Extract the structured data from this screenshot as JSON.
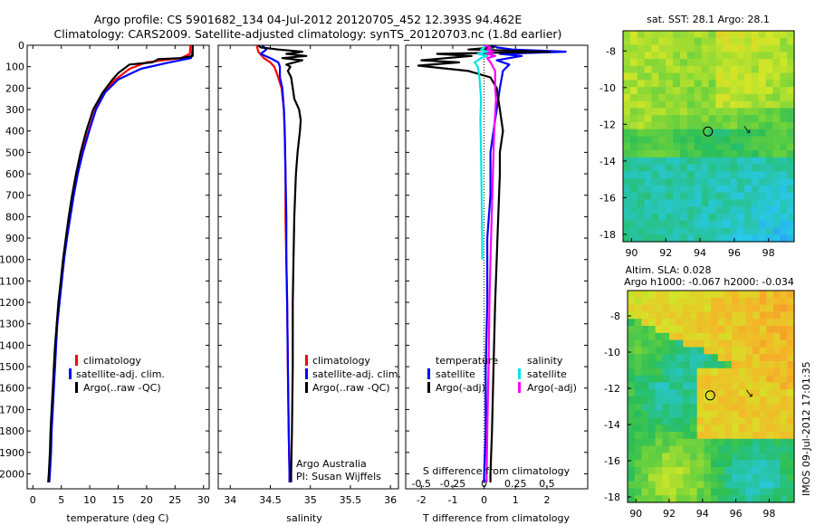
{
  "title": {
    "line1": "Argo profile: CS 5901682_134 04-Jul-2012 20120705_452 12.393S 94.462E",
    "line2": "Climatology: CARS2009. Satellite-adjusted climatology: synTS_20120703.nc (1.8d earlier)"
  },
  "side_text": "IMOS 09-Jul-2012 17:01:35",
  "colors": {
    "climatology": "#ff0000",
    "satellite": "#0000ff",
    "argo": "#000000",
    "sat_diff_s": "#00e5e5",
    "argo_diff_s": "#ff00ff"
  },
  "chart_data": [
    {
      "id": "temperature",
      "type": "line",
      "xlabel": "temperature (deg C)",
      "ylabel": "",
      "xlim": [
        -1,
        31
      ],
      "ylim": [
        2070,
        0
      ],
      "xticks": [
        "0",
        "5",
        "10",
        "15",
        "20",
        "25",
        "30"
      ],
      "yticks": [
        "0",
        "100",
        "200",
        "300",
        "400",
        "500",
        "600",
        "700",
        "800",
        "900",
        "1000",
        "1100",
        "1200",
        "1300",
        "1400",
        "1500",
        "1600",
        "1700",
        "1800",
        "1900",
        "2000"
      ],
      "legend": [
        "climatology",
        "satellite-adj. clim.",
        "Argo(..raw -QC)"
      ],
      "series": [
        {
          "name": "climatology",
          "color": "#ff0000",
          "points": [
            [
              27.7,
              0
            ],
            [
              27.6,
              40
            ],
            [
              26,
              60
            ],
            [
              20,
              80
            ],
            [
              17,
              110
            ],
            [
              14.5,
              160
            ],
            [
              12.5,
              220
            ],
            [
              11,
              300
            ],
            [
              9.8,
              400
            ],
            [
              8.7,
              500
            ],
            [
              7.8,
              600
            ],
            [
              7.1,
              700
            ],
            [
              6.5,
              800
            ],
            [
              5.9,
              900
            ],
            [
              5.4,
              1000
            ],
            [
              5,
              1100
            ],
            [
              4.6,
              1200
            ],
            [
              4.2,
              1300
            ],
            [
              4,
              1400
            ],
            [
              3.8,
              1500
            ],
            [
              3.6,
              1600
            ],
            [
              3.4,
              1700
            ],
            [
              3.2,
              1800
            ],
            [
              3.1,
              1900
            ],
            [
              2.9,
              2000
            ],
            [
              2.8,
              2040
            ]
          ]
        },
        {
          "name": "satellite-adj. clim.",
          "color": "#0000ff",
          "points": [
            [
              28.1,
              0
            ],
            [
              28,
              40
            ],
            [
              27.8,
              60
            ],
            [
              24,
              80
            ],
            [
              19,
              110
            ],
            [
              15,
              160
            ],
            [
              12.7,
              220
            ],
            [
              11.1,
              300
            ],
            [
              9.9,
              400
            ],
            [
              8.8,
              500
            ],
            [
              7.9,
              600
            ],
            [
              7.2,
              700
            ],
            [
              6.6,
              800
            ],
            [
              6,
              900
            ],
            [
              5.5,
              1000
            ],
            [
              5.1,
              1100
            ],
            [
              4.7,
              1200
            ],
            [
              4.3,
              1300
            ],
            [
              4.1,
              1400
            ],
            [
              3.9,
              1500
            ],
            [
              3.7,
              1600
            ],
            [
              3.5,
              1700
            ],
            [
              3.3,
              1800
            ],
            [
              3.2,
              1900
            ],
            [
              3,
              2000
            ],
            [
              2.9,
              2040
            ]
          ]
        },
        {
          "name": "Argo(..raw -QC)",
          "color": "#000000",
          "points": [
            [
              28.1,
              0
            ],
            [
              28.1,
              50
            ],
            [
              26,
              60
            ],
            [
              22,
              65
            ],
            [
              21,
              80
            ],
            [
              17,
              90
            ],
            [
              15,
              130
            ],
            [
              14,
              160
            ],
            [
              12.3,
              220
            ],
            [
              10.6,
              300
            ],
            [
              9.4,
              400
            ],
            [
              8.4,
              500
            ],
            [
              7.6,
              600
            ],
            [
              6.9,
              700
            ],
            [
              6.3,
              800
            ],
            [
              5.8,
              900
            ],
            [
              5.3,
              1000
            ],
            [
              4.9,
              1100
            ],
            [
              4.5,
              1200
            ],
            [
              4.2,
              1300
            ],
            [
              3.9,
              1400
            ],
            [
              3.7,
              1500
            ],
            [
              3.5,
              1600
            ],
            [
              3.3,
              1700
            ],
            [
              3.1,
              1800
            ],
            [
              3,
              1900
            ],
            [
              2.8,
              2000
            ],
            [
              2.7,
              2040
            ]
          ]
        }
      ]
    },
    {
      "id": "salinity",
      "type": "line",
      "xlabel": "salinity",
      "ylabel": "",
      "xlim": [
        33.85,
        36.1
      ],
      "ylim": [
        2070,
        0
      ],
      "xticks": [
        "34",
        "34.5",
        "35",
        "35.5",
        "36"
      ],
      "legend": [
        "climatology",
        "satellite-adj. clim.",
        "Argo(..raw -QC)"
      ],
      "annotations": [
        "Argo Australia",
        "PI: Susan Wijffels"
      ],
      "series": [
        {
          "name": "climatology",
          "color": "#ff0000",
          "points": [
            [
              34.33,
              0
            ],
            [
              34.35,
              30
            ],
            [
              34.42,
              60
            ],
            [
              34.5,
              80
            ],
            [
              34.55,
              100
            ],
            [
              34.6,
              150
            ],
            [
              34.64,
              200
            ],
            [
              34.67,
              300
            ],
            [
              34.68,
              400
            ],
            [
              34.69,
              600
            ],
            [
              34.69,
              800
            ],
            [
              34.7,
              1000
            ],
            [
              34.71,
              1200
            ],
            [
              34.72,
              1500
            ],
            [
              34.73,
              1800
            ],
            [
              34.74,
              2000
            ],
            [
              34.74,
              2040
            ]
          ]
        },
        {
          "name": "satellite-adj. clim.",
          "color": "#0000ff",
          "points": [
            [
              34.4,
              0
            ],
            [
              34.45,
              20
            ],
            [
              34.38,
              40
            ],
            [
              34.5,
              60
            ],
            [
              34.6,
              80
            ],
            [
              34.62,
              100
            ],
            [
              34.62,
              150
            ],
            [
              34.65,
              200
            ],
            [
              34.67,
              300
            ],
            [
              34.68,
              400
            ],
            [
              34.69,
              600
            ],
            [
              34.7,
              800
            ],
            [
              34.7,
              1000
            ],
            [
              34.71,
              1200
            ],
            [
              34.72,
              1500
            ],
            [
              34.73,
              1800
            ],
            [
              34.74,
              2000
            ],
            [
              34.74,
              2040
            ]
          ]
        },
        {
          "name": "Argo(..raw -QC)",
          "color": "#000000",
          "points": [
            [
              34.35,
              0
            ],
            [
              34.38,
              10
            ],
            [
              34.6,
              20
            ],
            [
              34.9,
              30
            ],
            [
              34.7,
              40
            ],
            [
              34.95,
              50
            ],
            [
              34.65,
              60
            ],
            [
              34.9,
              70
            ],
            [
              34.7,
              90
            ],
            [
              34.75,
              100
            ],
            [
              34.72,
              120
            ],
            [
              34.76,
              150
            ],
            [
              34.78,
              200
            ],
            [
              34.8,
              250
            ],
            [
              34.86,
              300
            ],
            [
              34.88,
              350
            ],
            [
              34.87,
              400
            ],
            [
              34.84,
              500
            ],
            [
              34.82,
              600
            ],
            [
              34.81,
              700
            ],
            [
              34.8,
              800
            ],
            [
              34.79,
              1000
            ],
            [
              34.78,
              1200
            ],
            [
              34.78,
              1500
            ],
            [
              34.77,
              1800
            ],
            [
              34.76,
              2000
            ],
            [
              34.76,
              2040
            ]
          ]
        }
      ]
    },
    {
      "id": "differences",
      "type": "line",
      "xlabel": "T difference from climatology",
      "xlabel_top": "S difference from climatology",
      "xlim": [
        -2.5,
        3.3
      ],
      "ylim": [
        2070,
        0
      ],
      "xticks": [
        "-2",
        "-1",
        "0",
        "1",
        "2"
      ],
      "xticks_top": [
        "-0.5",
        "-0.25",
        "0",
        "0.25",
        "0.5"
      ],
      "legend_groups": [
        {
          "header": "temperature",
          "items": [
            "satellite",
            "Argo(-adj)"
          ]
        },
        {
          "header": "salinity",
          "items": [
            "satellite",
            "Argo(-adj)"
          ]
        }
      ],
      "series": [
        {
          "name": "satellite",
          "quantity": "temperature",
          "color": "#0000ff",
          "points": [
            [
              0.3,
              0
            ],
            [
              0.4,
              10
            ],
            [
              0.9,
              20
            ],
            [
              2.6,
              30
            ],
            [
              0.5,
              40
            ],
            [
              1.2,
              50
            ],
            [
              0.4,
              70
            ],
            [
              0.8,
              90
            ],
            [
              0.6,
              120
            ],
            [
              0.5,
              200
            ],
            [
              0.4,
              300
            ],
            [
              0.3,
              400
            ],
            [
              0.2,
              500
            ],
            [
              0.2,
              700
            ],
            [
              0.1,
              900
            ],
            [
              0.1,
              1200
            ],
            [
              0.05,
              1500
            ],
            [
              0.05,
              1800
            ],
            [
              0,
              2000
            ],
            [
              0,
              2040
            ]
          ]
        },
        {
          "name": "Argo(-adj)",
          "quantity": "temperature",
          "color": "#000000",
          "points": [
            [
              0.2,
              0
            ],
            [
              0.3,
              10
            ],
            [
              -0.5,
              20
            ],
            [
              2.1,
              30
            ],
            [
              -1.5,
              40
            ],
            [
              -0.4,
              50
            ],
            [
              -2.0,
              70
            ],
            [
              -0.8,
              80
            ],
            [
              -2.1,
              95
            ],
            [
              -0.5,
              120
            ],
            [
              0.2,
              150
            ],
            [
              0.4,
              200
            ],
            [
              0.5,
              300
            ],
            [
              0.6,
              400
            ],
            [
              0.5,
              500
            ],
            [
              0.5,
              600
            ],
            [
              0.45,
              800
            ],
            [
              0.4,
              1000
            ],
            [
              0.35,
              1200
            ],
            [
              0.3,
              1500
            ],
            [
              0.25,
              1800
            ],
            [
              0.2,
              2000
            ],
            [
              0.2,
              2040
            ]
          ]
        },
        {
          "name": "satellite",
          "quantity": "salinity",
          "color": "#00e5e5",
          "points": [
            [
              0,
              0
            ],
            [
              0.02,
              10
            ],
            [
              -0.1,
              20
            ],
            [
              0.1,
              30
            ],
            [
              -0.2,
              40
            ],
            [
              0.1,
              50
            ],
            [
              -0.1,
              60
            ],
            [
              -0.3,
              80
            ],
            [
              -0.2,
              100
            ],
            [
              -0.15,
              150
            ],
            [
              -0.1,
              250
            ],
            [
              -0.12,
              350
            ],
            [
              -0.1,
              500
            ],
            [
              -0.08,
              700
            ],
            [
              -0.06,
              1000
            ]
          ]
        },
        {
          "name": "Argo(-adj)",
          "quantity": "salinity",
          "color": "#ff00ff",
          "points": [
            [
              0,
              0
            ],
            [
              0.2,
              10
            ],
            [
              0.1,
              20
            ],
            [
              0.3,
              30
            ],
            [
              0.1,
              40
            ],
            [
              0.35,
              50
            ],
            [
              0.1,
              60
            ],
            [
              0.2,
              80
            ],
            [
              0.35,
              120
            ],
            [
              0.35,
              200
            ],
            [
              0.38,
              250
            ],
            [
              0.36,
              300
            ],
            [
              0.32,
              400
            ],
            [
              0.28,
              600
            ],
            [
              0.24,
              800
            ],
            [
              0.2,
              1000
            ],
            [
              0.17,
              1200
            ],
            [
              0.14,
              1500
            ],
            [
              0.1,
              1800
            ],
            [
              0.08,
              2000
            ],
            [
              0.08,
              2040
            ]
          ]
        }
      ]
    },
    {
      "id": "sst_map",
      "type": "heatmap",
      "title": "sat. SST: 28.1  Argo: 28.1",
      "xlim": [
        89.5,
        99.5
      ],
      "ylim": [
        -18.4,
        -6.9
      ],
      "xticks": [
        "90",
        "92",
        "94",
        "96",
        "98"
      ],
      "yticks": [
        "-8",
        "-10",
        "-12",
        "-14",
        "-16",
        "-18"
      ],
      "marker": [
        94.46,
        -12.39
      ]
    },
    {
      "id": "sla_map",
      "type": "heatmap",
      "title": "Altim. SLA: 0.028",
      "subtitle": "Argo h1000: -0.067  h2000: -0.034",
      "xlim": [
        89.5,
        99.5
      ],
      "ylim": [
        -18.3,
        -6.6
      ],
      "xticks": [
        "90",
        "92",
        "94",
        "96",
        "98"
      ],
      "yticks": [
        "-8",
        "-10",
        "-12",
        "-14",
        "-16",
        "-18"
      ],
      "marker": [
        94.46,
        -12.39
      ]
    }
  ]
}
